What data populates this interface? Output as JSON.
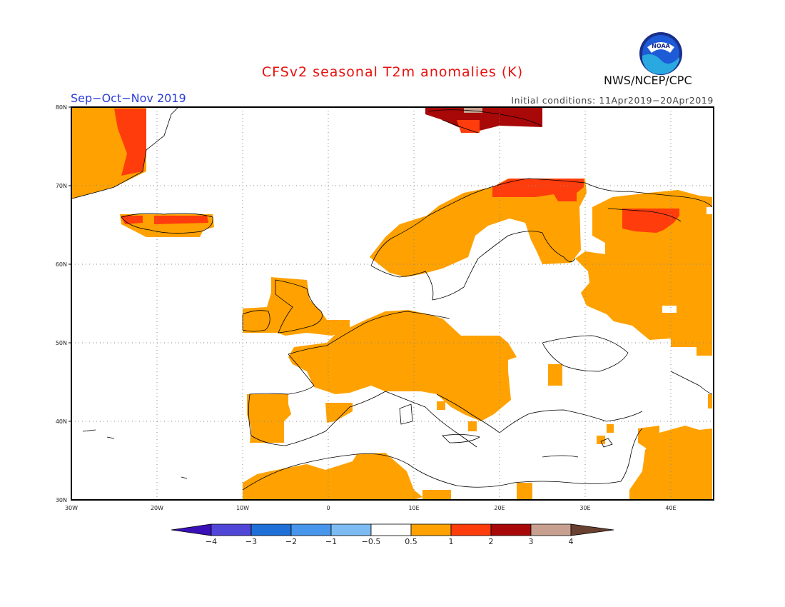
{
  "header": {
    "title": "CFSv2 seasonal T2m anomalies (K)",
    "season": "Sep−Oct−Nov 2019",
    "initial_conditions": "Initial conditions: 11Apr2019−20Apr2019",
    "agency": "NWS/NCEP/CPC",
    "logo_text": "NOAA"
  },
  "map": {
    "lat_labels": [
      "80N",
      "70N",
      "60N",
      "50N",
      "40N",
      "30N"
    ],
    "lon_labels": [
      "30W",
      "20W",
      "10W",
      "0",
      "10E",
      "20E",
      "30E",
      "40E"
    ],
    "gridlines": "dotted",
    "colors": {
      "ocean_land_background": "#ffffff",
      "coast": "#000000"
    }
  },
  "colorbar": {
    "labels": [
      "−4",
      "−3",
      "−2",
      "−1",
      "−0.5",
      "0.5",
      "1",
      "2",
      "3",
      "4"
    ],
    "colors": [
      "#3a10b8",
      "#5046d8",
      "#1e6fd8",
      "#4896ec",
      "#7cbcf2",
      "#ffffff",
      "#ffa100",
      "#ff3c0c",
      "#a80808",
      "#c8a090",
      "#6a4030"
    ]
  },
  "anomaly_colors": {
    "plus_0_5_to_1": "#ffa100",
    "plus_1_to_2": "#ff3c0c",
    "plus_2_to_3": "#a80808",
    "plus_3_to_4": "#c8a090"
  }
}
